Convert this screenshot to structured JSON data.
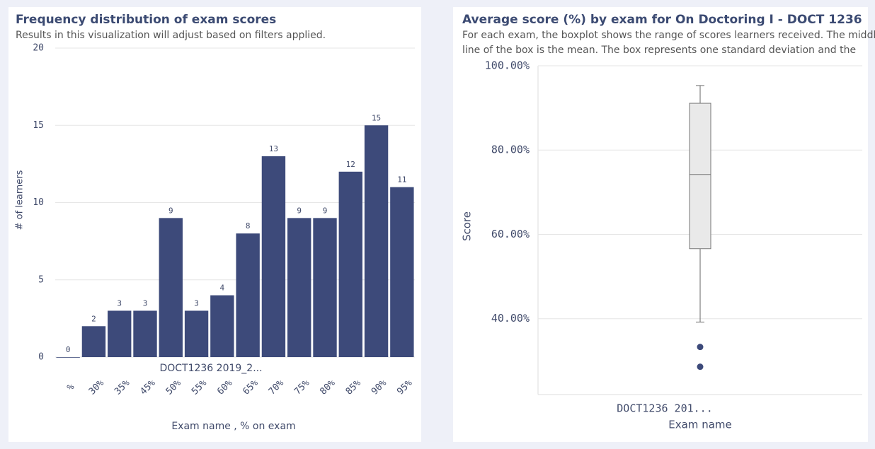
{
  "chart_data": [
    {
      "type": "bar",
      "title": "Frequency distribution of exam scores",
      "subtitle": [
        "Results in this visualization will adjust based on filters applied."
      ],
      "y_label": "# of learners",
      "group_label": "DOCT1236 2019_2...",
      "x_label": "Exam name , % on exam",
      "categories": [
        "%",
        "30%",
        "35%",
        "45%",
        "50%",
        "55%",
        "60%",
        "65%",
        "70%",
        "75%",
        "80%",
        "85%",
        "90%",
        "95%"
      ],
      "values": [
        0,
        2,
        3,
        3,
        9,
        3,
        4,
        8,
        13,
        9,
        9,
        12,
        15,
        11
      ],
      "color": "#3d4a7a",
      "ylim": [
        0,
        20
      ],
      "yticks": [
        0,
        5,
        10,
        15,
        20
      ],
      "grid": true
    },
    {
      "type": "box",
      "title": "Average score (%) by exam for On Doctoring I - DOCT 1236",
      "subtitle": [
        "For each exam, the boxplot shows the range of scores learners received. The middle",
        "line of the box is the mean. The box represents one standard deviation and the"
      ],
      "y_label": "Score",
      "x_label": "Exam name",
      "categories": [
        "DOCT1236 201..."
      ],
      "min": [
        39.2
      ],
      "q1": [
        56.6
      ],
      "mean": [
        74.2
      ],
      "q3": [
        91.1
      ],
      "max": [
        95.3
      ],
      "outliers": [
        [
          33.3,
          28.6
        ]
      ],
      "color": "#3d4a7a",
      "ylim": [
        22,
        100
      ],
      "yticks": [
        {
          "value": 40,
          "label": "40.00%"
        },
        {
          "value": 60,
          "label": "60.00%"
        },
        {
          "value": 80,
          "label": "80.00%"
        },
        {
          "value": 100,
          "label": "100.00%"
        }
      ],
      "grid": true
    }
  ]
}
